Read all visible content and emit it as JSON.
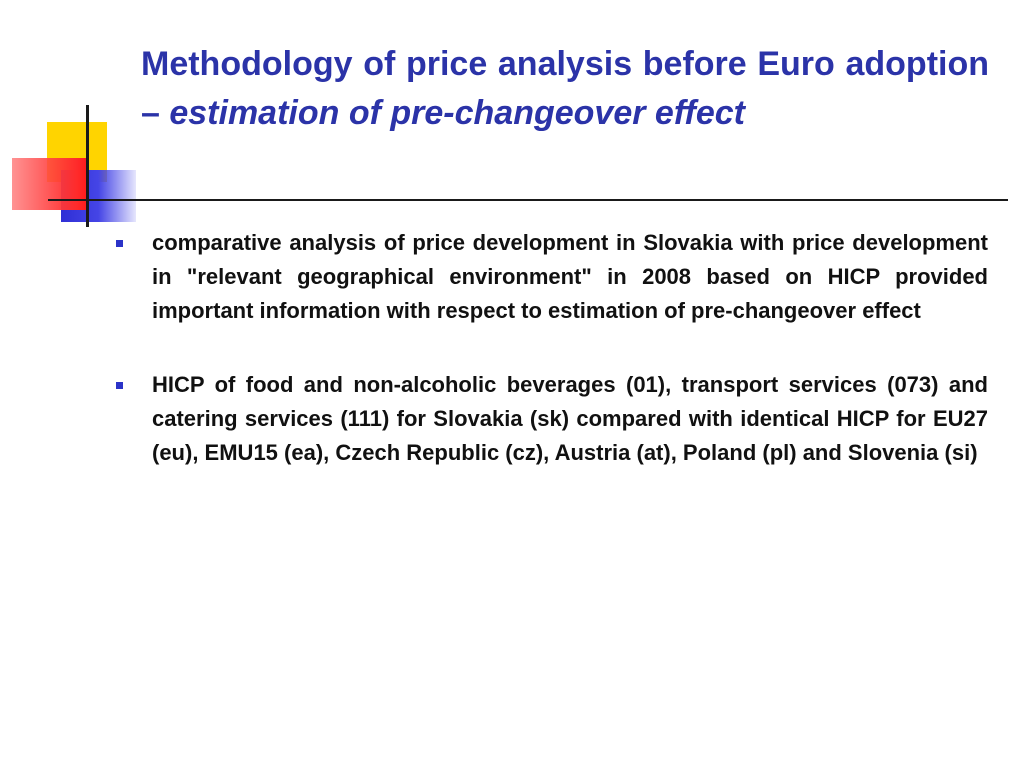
{
  "slide": {
    "title": {
      "part1": "Methodology of price analysis before Euro adoption – ",
      "part2": "estimation of pre-changeover effect"
    },
    "bullets": [
      {
        "text": "comparative analysis of price development in Slovakia with price development in \"relevant geographical environment\" in 2008 based on HICP provided important information with respect to estimation of pre-changeover effect"
      },
      {
        "text": "HICP of food and non-alcoholic beverages (01), transport services (073) and catering services (111) for Slovakia (sk) compared with identical HICP for EU27 (eu), EMU15 (ea), Czech Republic (cz), Austria (at), Poland (pl) and Slovenia (si)"
      }
    ]
  },
  "colors": {
    "title": "#2b33a8",
    "body_text": "#111111",
    "bullet_marker": "#2b33c8",
    "deco_yellow": "#ffd400",
    "deco_blue": "#2f2fd6",
    "deco_red": "#ff2b2b"
  }
}
